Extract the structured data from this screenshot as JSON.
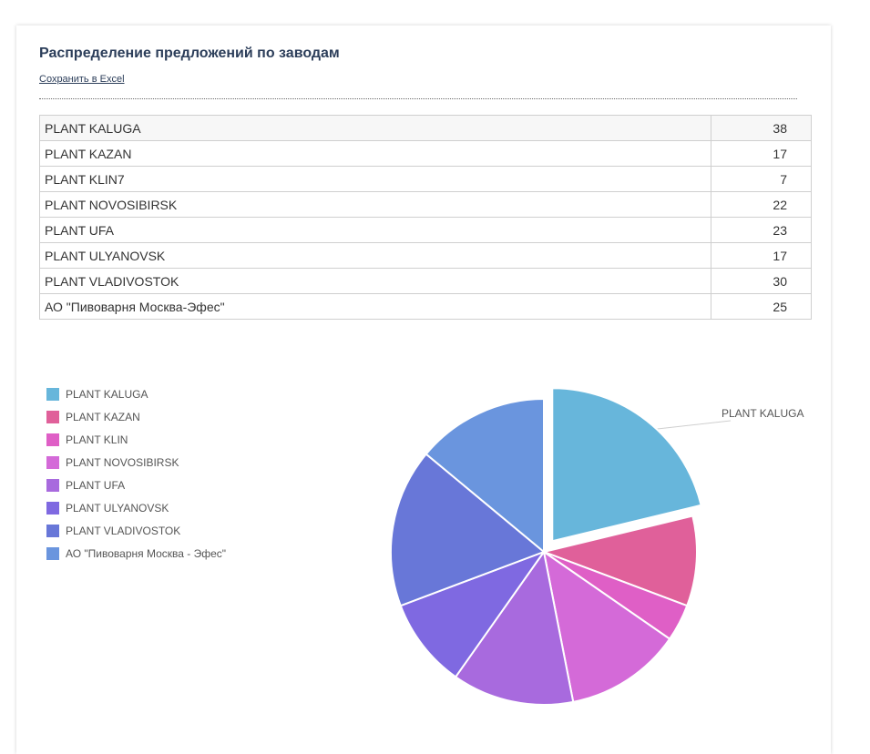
{
  "header": {
    "title": "Распределение предложений по заводам",
    "excel_link": "Сохранить в Excel"
  },
  "table": {
    "rows": [
      {
        "name": "PLANT KALUGA",
        "value": "38"
      },
      {
        "name": "PLANT KAZAN",
        "value": "17"
      },
      {
        "name": "PLANT KLIN7",
        "value": "7"
      },
      {
        "name": "PLANT NOVOSIBIRSK",
        "value": "22"
      },
      {
        "name": "PLANT UFA",
        "value": "23"
      },
      {
        "name": "PLANT ULYANOVSK",
        "value": "17"
      },
      {
        "name": "PLANT VLADIVOSTOK",
        "value": "30"
      },
      {
        "name": "АО \"Пивоварня Москва-Эфес\"",
        "value": "25"
      }
    ]
  },
  "chart_data": {
    "type": "pie",
    "categories": [
      "PLANT KALUGA",
      "PLANT KAZAN",
      "PLANT KLIN",
      "PLANT NOVOSIBIRSK",
      "PLANT UFA",
      "PLANT ULYANOVSK",
      "PLANT VLADIVOSTOK",
      "АО \"Пивоварня Москва - Эфес\""
    ],
    "values": [
      38,
      17,
      7,
      22,
      23,
      17,
      30,
      25
    ],
    "colors": [
      "#67b6db",
      "#e0609a",
      "#df5fc6",
      "#d46ad8",
      "#a86ade",
      "#7f69e1",
      "#6877d8",
      "#6a95de"
    ],
    "legend_position": "left",
    "exploded_slice": "PLANT KALUGA",
    "callout_label": "PLANT KALUGA"
  }
}
